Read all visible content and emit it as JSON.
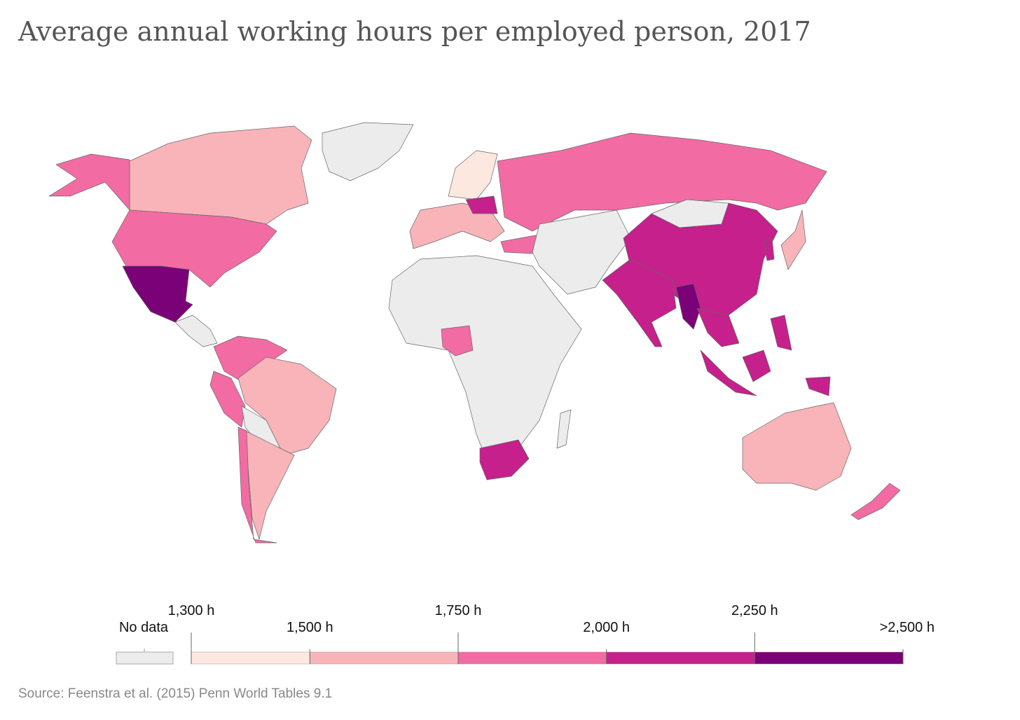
{
  "title": "Average annual working hours per employed person, 2017",
  "source": "Source: Feenstra et al. (2015) Penn World Tables 9.1",
  "chart_data": {
    "type": "choropleth-legend",
    "no_data_label": "No data",
    "no_data_color": "#ececec",
    "xlim": [
      1300,
      2500
    ],
    "xticks": [
      {
        "value": 1300,
        "label": "1,300 h"
      },
      {
        "value": 1500,
        "label": "1,500 h"
      },
      {
        "value": 1750,
        "label": "1,750 h"
      },
      {
        "value": 2000,
        "label": "2,000 h"
      },
      {
        "value": 2250,
        "label": "2,250 h"
      },
      {
        "value": 2500,
        "label": ">2,500 h"
      }
    ],
    "colors": [
      "#fde8e0",
      "#f9b4b9",
      "#f36ba3",
      "#c5208c",
      "#7a0177"
    ]
  }
}
